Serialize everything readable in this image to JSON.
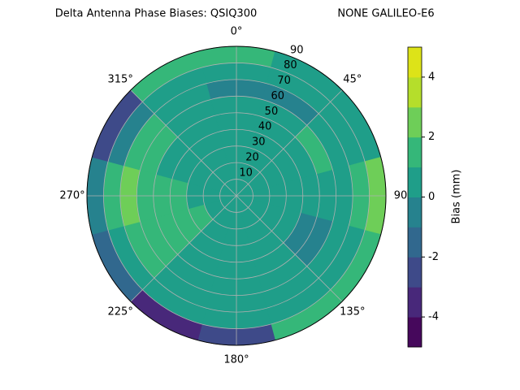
{
  "chart_data": {
    "type": "polar_contour",
    "title": "Delta Antenna Phase Biases: QSIQ300",
    "subtitle": "NONE GALILEO-E6",
    "rlim": [
      0,
      90
    ],
    "rticks": [
      10,
      20,
      30,
      40,
      50,
      60,
      70,
      80,
      90
    ],
    "thetaticks": [
      {
        "value": 0,
        "label": "0°"
      },
      {
        "value": 45,
        "label": "45°"
      },
      {
        "value": 90,
        "label": "90"
      },
      {
        "value": 135,
        "label": "135°"
      },
      {
        "value": 180,
        "label": "180°"
      },
      {
        "value": 225,
        "label": "225°"
      },
      {
        "value": 270,
        "label": "270°"
      },
      {
        "value": 315,
        "label": "315°"
      }
    ],
    "r_bins": [
      0,
      10,
      20,
      30,
      40,
      50,
      60,
      70,
      80,
      90
    ],
    "theta_bins": [
      -15,
      15,
      45,
      75,
      105,
      135,
      165,
      195,
      225,
      255,
      285,
      315,
      345
    ],
    "z": [
      [
        0.5,
        0.5,
        0.5,
        0.5,
        0.5,
        0.5,
        0.5,
        0.5,
        0.5,
        0.5,
        0.5,
        0.5
      ],
      [
        0.5,
        0.5,
        0.5,
        0.5,
        0.5,
        0.5,
        0.5,
        0.5,
        0.5,
        0.5,
        0.5,
        0.5
      ],
      [
        0.5,
        0.5,
        0.5,
        0.5,
        0.5,
        0.5,
        0.5,
        0.5,
        1.5,
        0.5,
        0.5,
        0.5
      ],
      [
        0.5,
        0.5,
        0.5,
        0.5,
        0.5,
        0.5,
        0.5,
        0.5,
        1.5,
        1.5,
        0.5,
        0.5
      ],
      [
        0.5,
        0.5,
        0.5,
        0.5,
        -0.5,
        0.5,
        0.5,
        0.5,
        1.5,
        1.5,
        0.5,
        0.5
      ],
      [
        0.5,
        0.5,
        1.5,
        0.5,
        -0.5,
        0.5,
        0.5,
        0.5,
        1.5,
        1.5,
        1.5,
        0.5
      ],
      [
        -0.5,
        -0.5,
        0.5,
        0.5,
        0.5,
        0.5,
        0.5,
        0.5,
        1.5,
        2.5,
        1.5,
        0.5
      ],
      [
        0.5,
        0.5,
        0.5,
        1.5,
        0.5,
        0.5,
        0.5,
        0.5,
        0.5,
        1.5,
        -0.5,
        0.5
      ],
      [
        1.5,
        0.5,
        0.5,
        2.5,
        1.5,
        1.5,
        -2.5,
        -3.5,
        -1.5,
        -0.5,
        -2.5,
        1.5
      ]
    ],
    "colorbar_label": "Bias (mm)",
    "clim": [
      -5,
      5
    ],
    "cticks": [
      -4,
      -2,
      0,
      2,
      4
    ],
    "colors": [
      "#46085c",
      "#48287a",
      "#3e4a89",
      "#31688e",
      "#26828e",
      "#1f9e89",
      "#35b779",
      "#6ece58",
      "#b5de2b",
      "#dde318"
    ]
  }
}
